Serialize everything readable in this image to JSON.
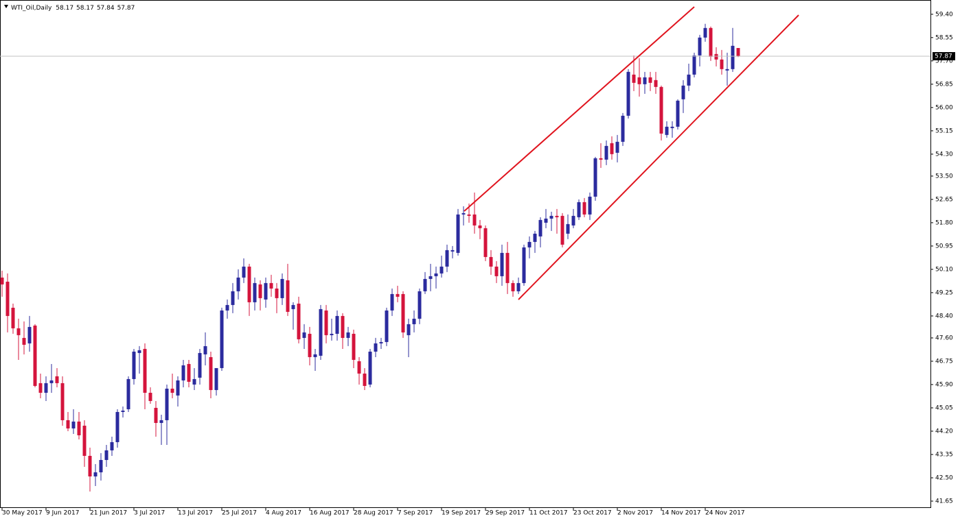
{
  "chart_data": {
    "type": "candlestick",
    "title": "WTI_Oil,Daily",
    "up_color": "#2b2b9e",
    "down_color": "#d4143c",
    "ylim": [
      41.5,
      59.92
    ],
    "yticks": [
      41.65,
      {
        "value": 42.5,
        "label": "42.50"
      },
      43.35,
      {
        "value": 44.2,
        "label": "44.20"
      },
      45.05,
      {
        "value": 45.9,
        "label": "45.90"
      },
      46.75,
      {
        "value": 47.6,
        "label": "47.60"
      },
      {
        "value": 48.4,
        "label": "48.40"
      },
      49.25,
      {
        "value": 50.1,
        "label": "50.10"
      },
      50.95,
      {
        "value": 51.8,
        "label": "51.80"
      },
      52.65,
      {
        "value": 53.5,
        "label": "53.50"
      },
      {
        "value": 54.3,
        "label": "54.30"
      },
      55.15,
      {
        "value": 56.0,
        "label": "56.00"
      },
      56.85,
      {
        "value": 57.7,
        "label": "57.70"
      },
      58.55,
      {
        "value": 59.4,
        "label": "59.40"
      }
    ],
    "categories": [
      "30 May 2017",
      null,
      null,
      null,
      null,
      null,
      null,
      null,
      "9 Jun 2017",
      null,
      null,
      null,
      null,
      null,
      null,
      null,
      "21 Jun 2017",
      null,
      null,
      null,
      null,
      null,
      null,
      null,
      "3 Jul 2017",
      null,
      null,
      null,
      null,
      null,
      null,
      null,
      "13 Jul 2017",
      null,
      null,
      null,
      null,
      null,
      null,
      null,
      "25 Jul 2017",
      null,
      null,
      null,
      null,
      null,
      null,
      null,
      "4 Aug 2017",
      null,
      null,
      null,
      null,
      null,
      null,
      null,
      "16 Aug 2017",
      null,
      null,
      null,
      null,
      null,
      null,
      null,
      "28 Aug 2017",
      null,
      null,
      null,
      null,
      null,
      null,
      null,
      "7 Sep 2017",
      null,
      null,
      null,
      null,
      null,
      null,
      null,
      "19 Sep 2017",
      null,
      null,
      null,
      null,
      null,
      null,
      null,
      "29 Sep 2017",
      null,
      null,
      null,
      null,
      null,
      null,
      null,
      "11 Oct 2017",
      null,
      null,
      null,
      null,
      null,
      null,
      null,
      "23 Oct 2017",
      null,
      null,
      null,
      null,
      null,
      null,
      null,
      "2 Nov 2017",
      null,
      null,
      null,
      null,
      null,
      null,
      null,
      "14 Nov 2017",
      null,
      null,
      null,
      null,
      null,
      null,
      null,
      "24 Nov 2017",
      null,
      null,
      null,
      null,
      null,
      null
    ],
    "open": [
      49.8,
      49.65,
      48.7,
      47.95,
      47.6,
      47.4,
      48.05,
      45.95,
      45.6,
      45.95,
      46.2,
      45.95,
      44.6,
      44.3,
      44.55,
      44.4,
      43.3,
      42.55,
      42.7,
      43.15,
      43.5,
      43.8,
      44.9,
      45.0,
      46.1,
      47.05,
      47.2,
      45.6,
      45.05,
      44.5,
      44.6,
      45.75,
      45.5,
      46.05,
      46.65,
      45.9,
      46.15,
      47.0,
      46.9,
      45.7,
      46.5,
      48.6,
      48.8,
      49.3,
      49.8,
      50.2,
      48.9,
      49.55,
      49.0,
      49.6,
      49.4,
      49.05,
      49.7,
      48.65,
      48.85,
      47.6,
      47.75,
      46.9,
      46.95,
      48.6,
      47.7,
      47.75,
      48.4,
      47.6,
      47.75,
      46.75,
      46.3,
      45.9,
      47.1,
      47.4,
      47.45,
      48.6,
      49.2,
      49.2,
      47.7,
      48.1,
      48.3,
      49.3,
      49.75,
      49.85,
      49.95,
      50.2,
      50.75,
      50.7,
      52.1,
      52.1,
      52.1,
      51.7,
      51.6,
      50.55,
      50.2,
      49.85,
      50.7,
      49.6,
      49.3,
      49.6,
      50.9,
      51.1,
      51.3,
      51.8,
      51.95,
      52.05,
      52.05,
      51.4,
      51.7,
      52.0,
      52.55,
      52.1,
      52.75,
      54.15,
      54.1,
      54.7,
      54.35,
      54.75,
      55.7,
      57.2,
      57.1,
      56.85,
      57.1,
      57.0,
      56.75,
      55.0,
      55.25,
      55.3,
      56.3,
      56.8,
      57.2,
      57.9,
      58.55,
      58.9,
      57.95,
      57.75,
      57.35,
      57.4,
      58.17
    ],
    "high": [
      50.05,
      49.95,
      48.85,
      48.3,
      48.2,
      48.4,
      48.1,
      46.3,
      46.2,
      46.65,
      46.5,
      46.2,
      44.9,
      45.0,
      44.9,
      44.6,
      43.6,
      43.0,
      43.4,
      43.7,
      44.0,
      45.0,
      45.1,
      46.2,
      47.2,
      47.3,
      47.4,
      45.8,
      45.3,
      44.8,
      45.9,
      46.3,
      46.2,
      46.8,
      46.8,
      46.5,
      47.2,
      47.8,
      47.1,
      46.5,
      48.7,
      49.0,
      49.6,
      50.1,
      50.5,
      50.3,
      49.8,
      49.7,
      49.8,
      49.9,
      49.6,
      49.95,
      50.3,
      48.9,
      49.1,
      48.1,
      48.0,
      47.2,
      48.8,
      48.8,
      48.3,
      48.6,
      48.5,
      48.0,
      47.9,
      46.9,
      46.5,
      47.2,
      47.6,
      47.6,
      48.7,
      49.4,
      49.5,
      49.3,
      48.3,
      48.6,
      49.4,
      50.0,
      50.3,
      50.2,
      50.6,
      51.0,
      50.95,
      52.3,
      52.4,
      52.5,
      52.9,
      51.9,
      51.7,
      50.8,
      50.4,
      51.0,
      51.1,
      49.7,
      49.8,
      51.0,
      51.3,
      51.5,
      52.0,
      52.3,
      52.2,
      52.3,
      52.15,
      52.1,
      52.3,
      52.65,
      52.7,
      52.9,
      54.2,
      54.7,
      54.8,
      54.95,
      55.0,
      55.8,
      57.4,
      57.9,
      57.8,
      57.3,
      57.3,
      57.3,
      56.8,
      55.5,
      55.5,
      56.3,
      57.0,
      57.6,
      58.0,
      58.65,
      59.05,
      58.95,
      58.2,
      58.1,
      58.0,
      58.9,
      58.17
    ],
    "low": [
      49.1,
      47.8,
      47.75,
      46.8,
      47.0,
      47.1,
      45.8,
      45.4,
      45.3,
      45.6,
      45.8,
      44.4,
      44.2,
      44.1,
      43.9,
      42.9,
      42.0,
      42.2,
      42.4,
      42.9,
      43.3,
      43.6,
      44.7,
      44.9,
      45.9,
      46.3,
      45.0,
      45.2,
      44.0,
      43.7,
      43.7,
      45.4,
      45.1,
      45.8,
      45.8,
      45.7,
      45.9,
      46.6,
      45.4,
      45.5,
      46.4,
      48.3,
      48.5,
      49.0,
      49.6,
      48.4,
      48.6,
      48.6,
      48.7,
      49.1,
      48.5,
      48.8,
      48.4,
      47.9,
      47.4,
      47.2,
      46.6,
      46.4,
      46.8,
      47.4,
      47.5,
      47.5,
      47.2,
      47.3,
      46.5,
      45.9,
      45.7,
      45.8,
      46.9,
      47.2,
      47.3,
      48.4,
      48.9,
      47.6,
      46.9,
      47.8,
      48.1,
      49.2,
      49.3,
      49.4,
      49.8,
      50.0,
      50.5,
      50.6,
      51.7,
      51.8,
      51.4,
      51.2,
      50.4,
      49.9,
      49.6,
      49.5,
      49.2,
      49.1,
      49.2,
      49.5,
      50.5,
      50.7,
      50.9,
      51.6,
      51.5,
      51.4,
      50.9,
      51.2,
      51.6,
      51.9,
      52.0,
      51.9,
      52.6,
      53.8,
      53.9,
      54.1,
      54.0,
      54.6,
      55.6,
      56.6,
      56.4,
      56.5,
      56.6,
      56.5,
      54.8,
      54.9,
      54.9,
      55.2,
      55.8,
      56.6,
      57.1,
      57.5,
      58.4,
      57.7,
      57.5,
      57.2,
      56.8,
      57.3,
      57.84
    ],
    "close": [
      49.55,
      48.4,
      47.95,
      47.7,
      47.35,
      48.0,
      45.85,
      45.6,
      45.95,
      46.05,
      45.95,
      44.6,
      44.3,
      44.55,
      44.05,
      43.3,
      42.55,
      42.7,
      43.15,
      43.5,
      43.8,
      44.9,
      44.95,
      46.1,
      47.1,
      47.15,
      45.6,
      45.3,
      44.5,
      44.6,
      45.75,
      45.6,
      46.05,
      46.6,
      46.0,
      46.1,
      47.05,
      47.3,
      45.7,
      46.5,
      48.6,
      48.8,
      49.3,
      49.8,
      50.2,
      48.9,
      49.6,
      49.05,
      49.6,
      49.4,
      49.05,
      49.75,
      48.55,
      48.8,
      47.55,
      47.8,
      46.9,
      47.0,
      48.65,
      47.7,
      47.75,
      48.4,
      47.6,
      47.8,
      46.8,
      46.3,
      45.85,
      47.1,
      47.4,
      47.45,
      48.6,
      49.2,
      49.1,
      47.8,
      48.1,
      48.3,
      49.3,
      49.75,
      49.85,
      49.95,
      50.2,
      50.8,
      50.8,
      52.1,
      52.15,
      52.05,
      51.7,
      51.6,
      50.55,
      50.2,
      49.85,
      50.7,
      49.6,
      49.3,
      49.6,
      50.9,
      51.1,
      51.4,
      51.9,
      51.95,
      52.05,
      52.0,
      51.0,
      51.75,
      52.05,
      52.55,
      52.1,
      52.75,
      54.15,
      54.1,
      54.6,
      54.3,
      54.75,
      55.7,
      57.3,
      56.9,
      56.85,
      57.1,
      56.9,
      56.75,
      55.05,
      55.3,
      55.3,
      56.25,
      56.8,
      57.2,
      57.9,
      58.55,
      58.9,
      57.85,
      57.75,
      57.4,
      57.4,
      58.25,
      57.87
    ]
  }
}
